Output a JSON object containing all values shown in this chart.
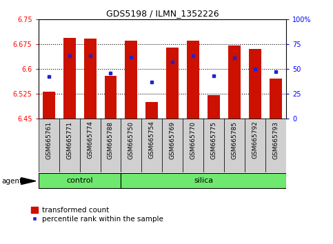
{
  "title": "GDS5198 / ILMN_1352226",
  "samples": [
    "GSM665761",
    "GSM665771",
    "GSM665774",
    "GSM665788",
    "GSM665750",
    "GSM665754",
    "GSM665769",
    "GSM665770",
    "GSM665775",
    "GSM665785",
    "GSM665792",
    "GSM665793"
  ],
  "groups": [
    "control",
    "control",
    "control",
    "control",
    "silica",
    "silica",
    "silica",
    "silica",
    "silica",
    "silica",
    "silica",
    "silica"
  ],
  "transformed_counts": [
    6.53,
    6.695,
    6.693,
    6.58,
    6.685,
    6.5,
    6.665,
    6.685,
    6.52,
    6.672,
    6.66,
    6.57
  ],
  "percentile_ranks": [
    42,
    63,
    63,
    46,
    62,
    37,
    57,
    63,
    43,
    61,
    50,
    47
  ],
  "y_min": 6.45,
  "y_max": 6.75,
  "y_ticks": [
    6.45,
    6.525,
    6.6,
    6.675,
    6.75
  ],
  "y_tick_labels": [
    "6.45",
    "6.525",
    "6.6",
    "6.675",
    "6.75"
  ],
  "y2_ticks": [
    0,
    25,
    50,
    75,
    100
  ],
  "y2_tick_labels": [
    "0",
    "25",
    "50",
    "75",
    "100%"
  ],
  "bar_color": "#CC1100",
  "dot_color": "#2222CC",
  "control_color": "#6EE86E",
  "silica_color": "#6EE86E",
  "xlabel_bg": "#D0D0D0",
  "agent_label": "agent",
  "legend_bar": "transformed count",
  "legend_dot": "percentile rank within the sample",
  "control_label": "control",
  "silica_label": "silica",
  "bar_width": 0.6
}
